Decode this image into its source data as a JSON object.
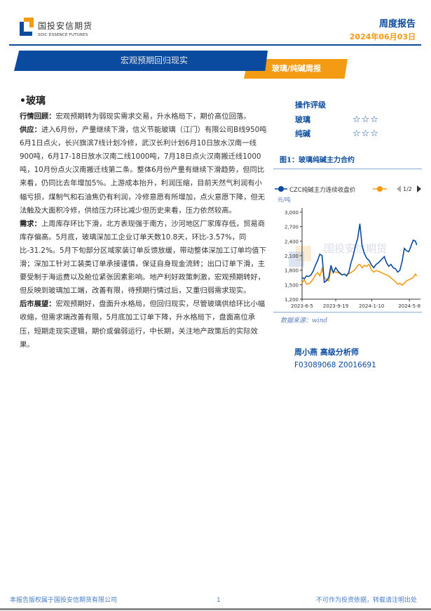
{
  "header": {
    "logo_cn": "国投安信期货",
    "logo_en": "SDIC ESSENCE FUTURES",
    "report_type": "周度报告",
    "date": "2024年06月03日"
  },
  "banner": {
    "title": "宏观预期回归现实",
    "category": "玻璃/纯碱周报"
  },
  "colors": {
    "brand_blue": "#0a4b9e",
    "brand_orange": "#f29b13"
  },
  "main": {
    "section_title": "•玻璃",
    "paragraphs": [
      {
        "label": "行情回顾：",
        "text": "宏观预期转为弱现实需求交易，升水格局下，期价高位回落。"
      },
      {
        "label": "供应：",
        "text": "进入6月份，产量继续下滑，信义节能玻璃（江门）有限公司B线950吨6月1日点火，长兴旗滨7线计划冷修，武汉长利计划6月10日放水汉南一线900吨，6月17-18日放水汉南二线1000吨，7月18日点火汉南搬迁线1000吨，10月份点火汉南搬迁线第二条。整体6月份产量有继续下滑趋势，但同比来看，仍同比去年增加5%。上游成本抬升，利润压缩，目前天然气利润有小幅亏损，煤制气和石油焦仍有利润，冷修意愿有所增加，点火意愿下降，但无法触及大面积冷修，供给压力环比减少但历史来看，压力依然较高。"
      },
      {
        "label": "需求：",
        "text": "上周库存环比下滑，北方表现强于南方，沙河地区厂家库存低，贸易商库存偏高。5月底，玻璃深加工企业订单天数10.8天，环比-3.57%，同比-31.2%。5月下旬部分区域家装订单反馈放缓，带动整体深加工订单均值下滑；深加工针对工装类订单承接谨慎，保证自身现金流转；出口订单下滑，主要受制于海运费以及舱位紧张因素影响。地产利好政策刺激，宏观预期转好，但反映到玻璃加工端，改善有限，待预期行情过后，又重归弱需求现实。"
      },
      {
        "label": "后市展望：",
        "text": "宏观预期好，盘面升水格局，但回归现实，尽管玻璃供给环比小幅收缩，但需求端改善有限，5月底加工订单下降，升水格局下，盘面高位承压，短期走现实逻辑，期价或偏弱运行，中长期，关注地产政策后的实际效果。"
      }
    ]
  },
  "sidebar": {
    "rating_title": "操作评级",
    "ratings": [
      {
        "name": "玻璃",
        "stars": "☆☆☆",
        "count": 3
      },
      {
        "name": "纯碱",
        "stars": "☆☆☆",
        "count": 3
      }
    ],
    "figure_title": "图1：玻璃纯碱主力合约",
    "source": "数据来源：wind",
    "author": "周小燕 高级分析师",
    "license": "F03089068 Z0016691"
  },
  "chart_data": {
    "type": "line",
    "unit_label": "元/吨",
    "legend_page": "1/2",
    "ylim": [
      1200,
      3000
    ],
    "yticks": [
      "1,200",
      "1,500",
      "1,800",
      "2,100",
      "2,400",
      "2,700",
      "3,000"
    ],
    "xticks": [
      "2023-6-5",
      "2023-9-19",
      "2024-1-10",
      "2024-5-8"
    ],
    "xlim": [
      "2023-06-05",
      "2024-06-03"
    ],
    "watermark": "国投安信期货 SDIC ESSENCE FUTURES",
    "x": [
      "2023-06-05",
      "2023-06-12",
      "2023-06-19",
      "2023-06-26",
      "2023-07-03",
      "2023-07-10",
      "2023-07-17",
      "2023-07-24",
      "2023-07-31",
      "2023-08-07",
      "2023-08-14",
      "2023-08-21",
      "2023-08-28",
      "2023-09-04",
      "2023-09-11",
      "2023-09-19",
      "2023-09-26",
      "2023-10-09",
      "2023-10-16",
      "2023-10-23",
      "2023-10-30",
      "2023-11-06",
      "2023-11-13",
      "2023-11-20",
      "2023-11-27",
      "2023-12-04",
      "2023-12-11",
      "2023-12-18",
      "2023-12-25",
      "2024-01-02",
      "2024-01-10",
      "2024-01-17",
      "2024-01-24",
      "2024-01-31",
      "2024-02-19",
      "2024-02-26",
      "2024-03-04",
      "2024-03-11",
      "2024-03-18",
      "2024-03-25",
      "2024-04-01",
      "2024-04-08",
      "2024-04-15",
      "2024-04-22",
      "2024-04-29",
      "2024-05-06",
      "2024-05-13",
      "2024-05-20",
      "2024-05-27",
      "2024-05-31"
    ],
    "series": [
      {
        "name": "CZC纯碱主力连续收盘价",
        "color": "#0a4b9e",
        "values": [
          1650,
          1620,
          1680,
          1670,
          1700,
          1780,
          1900,
          2000,
          2130,
          2100,
          1550,
          1580,
          1650,
          1900,
          1750,
          1850,
          1780,
          1700,
          1720,
          1680,
          1750,
          1950,
          2100,
          2300,
          2450,
          2760,
          2300,
          2150,
          2050,
          2000,
          1900,
          1850,
          1920,
          1950,
          2080,
          1950,
          1880,
          1920,
          1850,
          1830,
          1760,
          1800,
          1980,
          2250,
          2200,
          2180,
          2300,
          2420,
          2400,
          2320
        ]
      },
      {
        "color": "#f29b13",
        "values": [
          1530,
          1600,
          1510,
          1520,
          1550,
          1620,
          1700,
          1750,
          1680,
          1830,
          1650,
          1600,
          1580,
          1820,
          1770,
          1760,
          1750,
          1700,
          1720,
          1690,
          1730,
          1750,
          1780,
          1820,
          1900,
          1920,
          1850,
          1900,
          1880,
          1920,
          1800,
          1760,
          1790,
          1780,
          1720,
          1700,
          1680,
          1640,
          1600,
          1560,
          1510,
          1530,
          1490,
          1530,
          1580,
          1600,
          1620,
          1650,
          1720,
          1680
        ]
      }
    ]
  },
  "footer": {
    "left": "本报告版权属于国投安信期货有限公司",
    "page": "1",
    "right": "不可作为投资依据，转载请注明出处"
  }
}
